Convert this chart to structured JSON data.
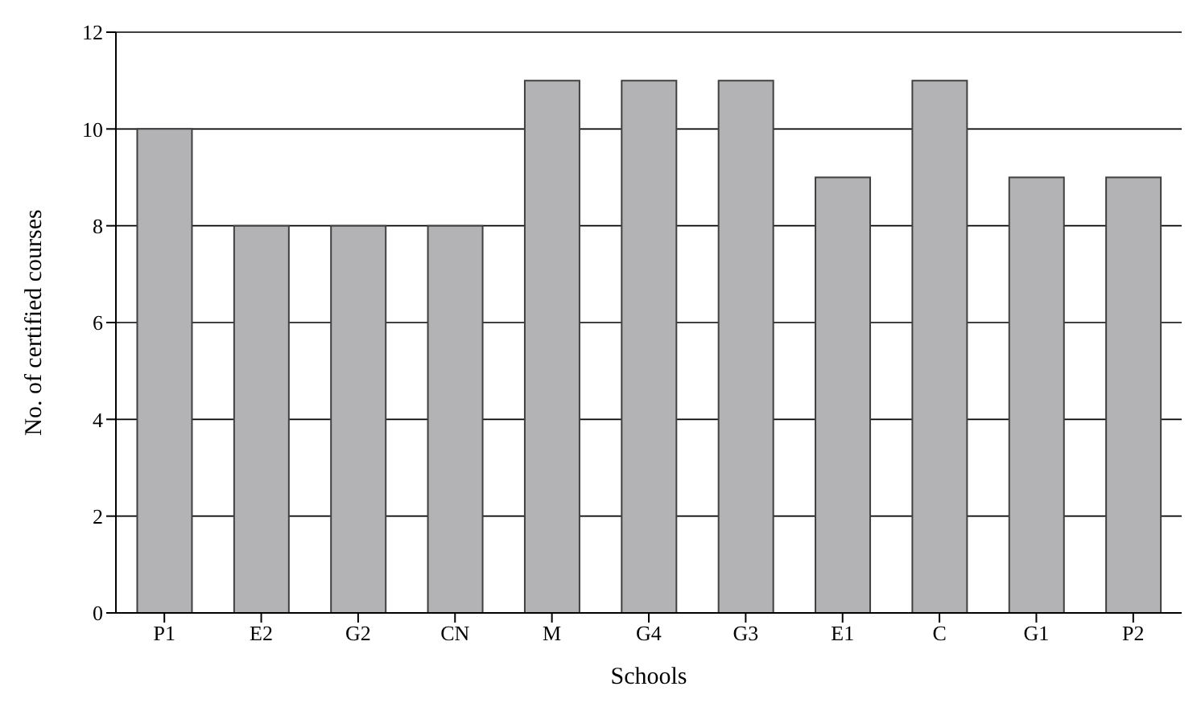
{
  "chart_data": {
    "type": "bar",
    "xlabel": "Schools",
    "ylabel": "No. of certified courses",
    "categories": [
      "P1",
      "E2",
      "G2",
      "CN",
      "M",
      "G4",
      "G3",
      "E1",
      "C",
      "G1",
      "P2"
    ],
    "values": [
      10,
      8,
      8,
      8,
      11,
      11,
      11,
      9,
      11,
      9,
      9
    ],
    "color": "#b3b3b5",
    "ylim": [
      0,
      12
    ],
    "yticks": [
      0,
      2,
      4,
      6,
      8,
      10,
      12
    ],
    "grid": "y"
  }
}
